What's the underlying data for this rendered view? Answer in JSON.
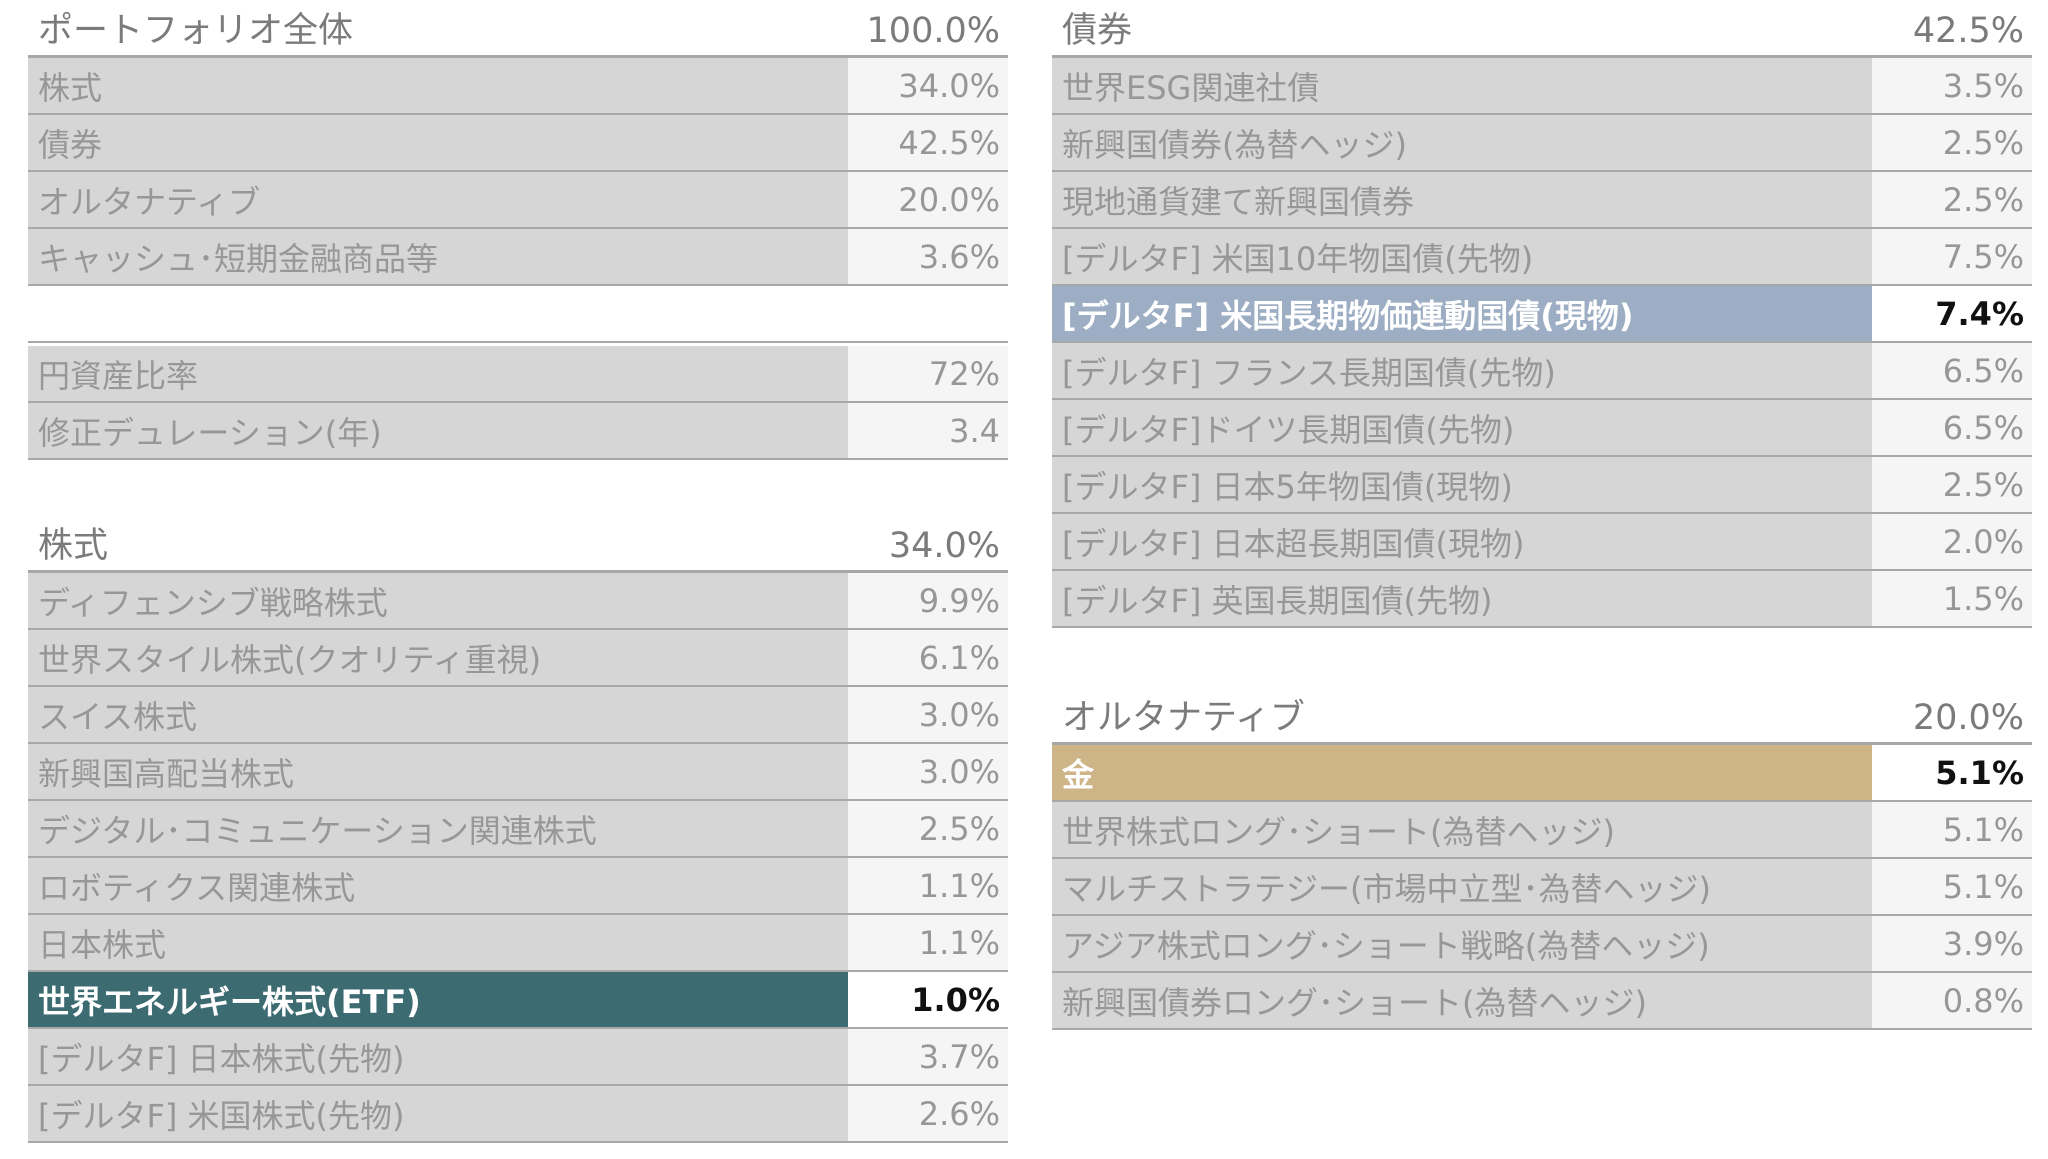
{
  "portfolio": {
    "title": "ポートフォリオ全体",
    "total": "100.0%",
    "rows": [
      {
        "label": "株式",
        "value": "34.0%"
      },
      {
        "label": "債券",
        "value": "42.5%"
      },
      {
        "label": "オルタナティブ",
        "value": "20.0%"
      },
      {
        "label": "キャッシュ･短期金融商品等",
        "value": "3.6%"
      }
    ]
  },
  "metrics": {
    "rows": [
      {
        "label": "円資産比率",
        "value": "72%"
      },
      {
        "label": "修正デュレーション(年)",
        "value": "3.4"
      }
    ]
  },
  "equity": {
    "title": "株式",
    "total": "34.0%",
    "rows": [
      {
        "label": "ディフェンシブ戦略株式",
        "value": "9.9%"
      },
      {
        "label": "世界スタイル株式(クオリティ重視)",
        "value": "6.1%"
      },
      {
        "label": "スイス株式",
        "value": "3.0%"
      },
      {
        "label": "新興国高配当株式",
        "value": "3.0%"
      },
      {
        "label": "デジタル･コミュニケーション関連株式",
        "value": "2.5%"
      },
      {
        "label": "ロボティクス関連株式",
        "value": "1.1%"
      },
      {
        "label": "日本株式",
        "value": "1.1%"
      },
      {
        "label": "世界エネルギー株式(ETF)",
        "value": "1.0%"
      },
      {
        "label": "[デルタF] 日本株式(先物)",
        "value": "3.7%"
      },
      {
        "label": "[デルタF] 米国株式(先物)",
        "value": "2.6%"
      }
    ]
  },
  "bonds": {
    "title": "債券",
    "total": "42.5%",
    "rows": [
      {
        "label": "世界ESG関連社債",
        "value": "3.5%"
      },
      {
        "label": "新興国債券(為替ヘッジ)",
        "value": "2.5%"
      },
      {
        "label": "現地通貨建て新興国債券",
        "value": "2.5%"
      },
      {
        "label": "[デルタF] 米国10年物国債(先物)",
        "value": "7.5%"
      },
      {
        "label": "[デルタF] 米国長期物価連動国債(現物)",
        "value": "7.4%"
      },
      {
        "label": "[デルタF] フランス長期国債(先物)",
        "value": "6.5%"
      },
      {
        "label": "[デルタF]ドイツ長期国債(先物)",
        "value": "6.5%"
      },
      {
        "label": "[デルタF] 日本5年物国債(現物)",
        "value": "2.5%"
      },
      {
        "label": "[デルタF] 日本超長期国債(現物)",
        "value": "2.0%"
      },
      {
        "label": "[デルタF] 英国長期国債(先物)",
        "value": "1.5%"
      }
    ]
  },
  "alternatives": {
    "title": "オルタナティブ",
    "total": "20.0%",
    "rows": [
      {
        "label": "金",
        "value": "5.1%"
      },
      {
        "label": "世界株式ロング･ショート(為替ヘッジ)",
        "value": "5.1%"
      },
      {
        "label": "マルチストラテジー(市場中立型･為替ヘッジ)",
        "value": "5.1%"
      },
      {
        "label": "アジア株式ロング･ショート戦略(為替ヘッジ)",
        "value": "3.9%"
      },
      {
        "label": "新興国債券ロング･ショート(為替ヘッジ)",
        "value": "0.8%"
      }
    ]
  },
  "colors": {
    "highlight_teal": "#3d6b72",
    "highlight_blue": "#9daec4",
    "highlight_gold": "#cdb588"
  }
}
